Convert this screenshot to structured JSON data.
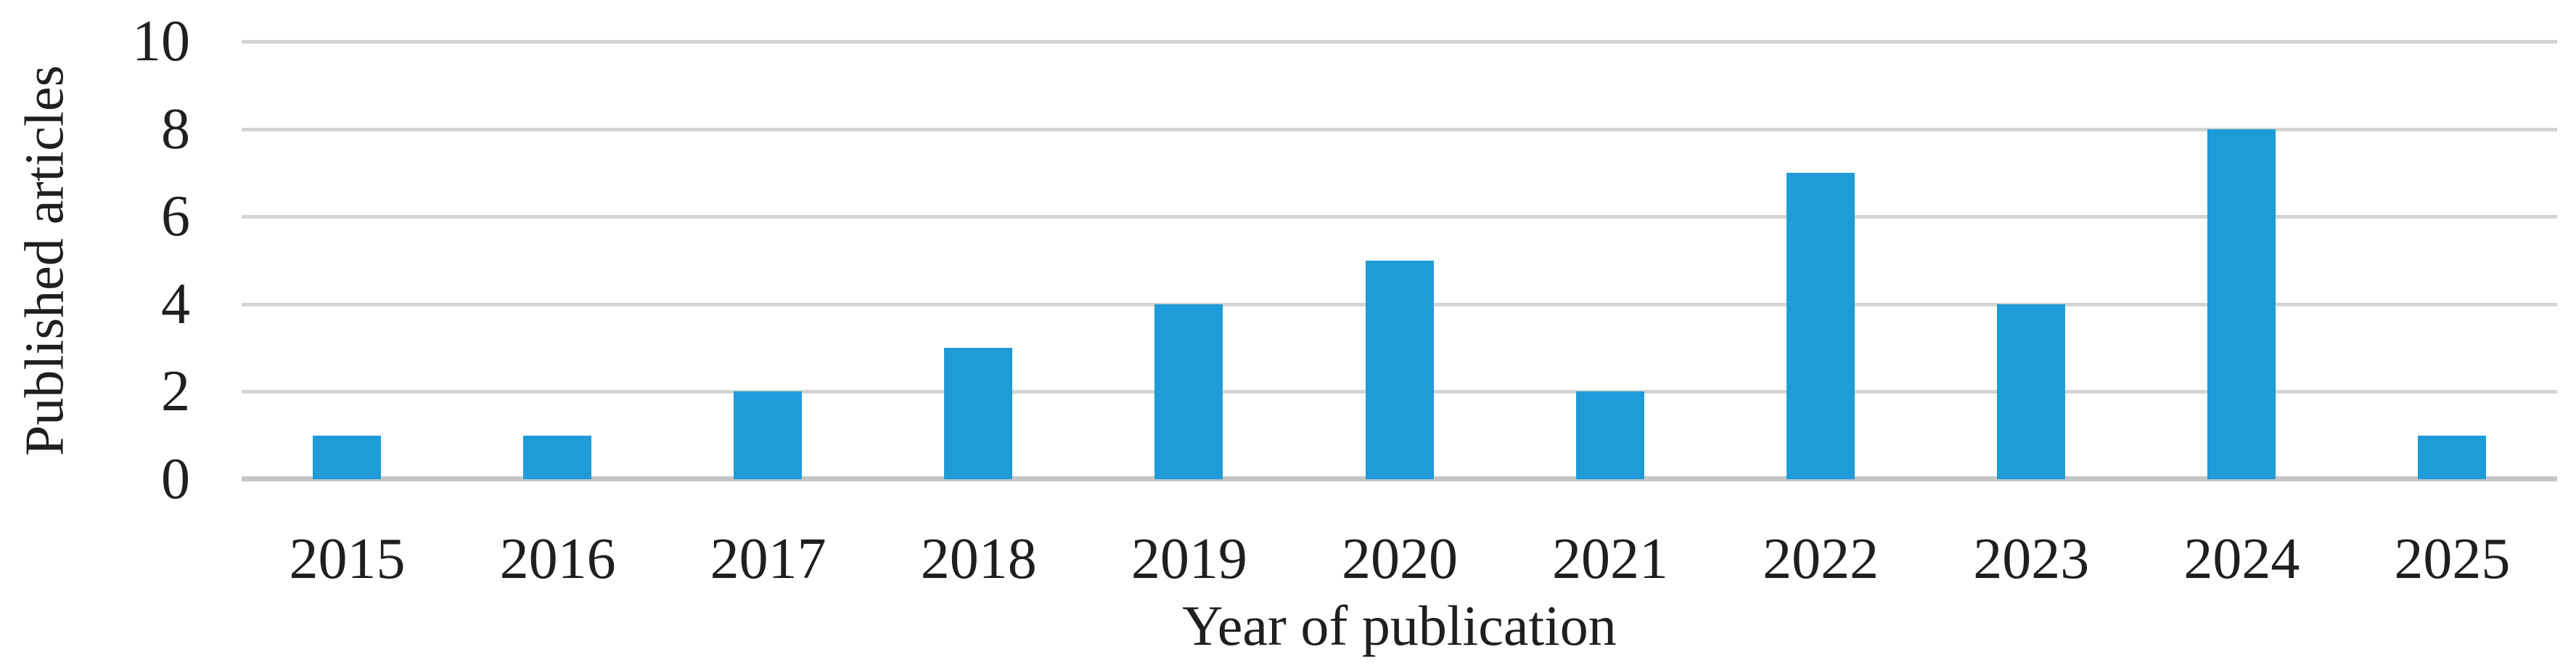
{
  "chart_data": {
    "type": "bar",
    "title": "",
    "categories": [
      "2015",
      "2016",
      "2017",
      "2018",
      "2019",
      "2020",
      "2021",
      "2022",
      "2023",
      "2024",
      "2025"
    ],
    "values": [
      1,
      1,
      2,
      3,
      4,
      5,
      2,
      7,
      4,
      8,
      1
    ],
    "xlabel": "Year of publication",
    "ylabel": "Published articles",
    "ylim": [
      0,
      10
    ],
    "yticks": [
      0,
      2,
      4,
      6,
      8,
      10
    ],
    "grid": "horizontal-only",
    "legend_position": "none",
    "colors": {
      "bar": "#1F9BD7",
      "gridline": "#D4D4D4",
      "axis_line": "#C6C6C6",
      "text": "#1F1F1F",
      "background": "#FFFFFF"
    }
  }
}
